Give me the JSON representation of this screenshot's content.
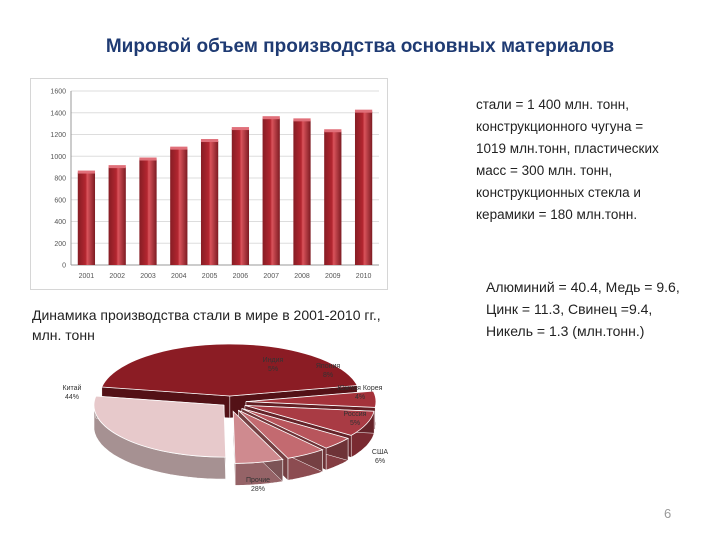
{
  "slide": {
    "title": "Мировой объем производства основных материалов",
    "caption": "Динамика производства стали в мире в 2001-2010 гг., млн. тонн",
    "text_block_1": "стали = 1 400 млн. тонн, конструкционного чугуна = 1019 млн.тонн, пластических масс = 300 млн. тонн, конструкционных стекла и керамики = 180 млн.тонн.",
    "text_block_2": "Алюминий = 40.4, Медь = 9.6, Цинк = 11.3, Свинец =9.4, Никель = 1.3 (млн.тонн.)",
    "page_number": "6"
  },
  "chart_data": [
    {
      "type": "bar",
      "categories": [
        "2001",
        "2002",
        "2003",
        "2004",
        "2005",
        "2006",
        "2007",
        "2008",
        "2009",
        "2010"
      ],
      "values": [
        850,
        900,
        970,
        1070,
        1140,
        1250,
        1350,
        1330,
        1230,
        1410
      ],
      "ylim": [
        0,
        1600
      ],
      "yticks": [
        0,
        200,
        400,
        600,
        800,
        1000,
        1200,
        1400,
        1600
      ],
      "grid": true,
      "color": "#b32630"
    },
    {
      "type": "pie",
      "style": "3d-exploded",
      "slices": [
        {
          "label": "Китай",
          "value": 44,
          "text": "44%",
          "color": "#8b1c24"
        },
        {
          "label": "Индия",
          "value": 5,
          "text": "5%",
          "color": "#a4323a"
        },
        {
          "label": "Япония",
          "value": 8,
          "text": "8%",
          "color": "#a93b44"
        },
        {
          "label": "Южная Корея",
          "value": 4,
          "text": "4%",
          "color": "#b8555c"
        },
        {
          "label": "Россия",
          "value": 5,
          "text": "5%",
          "color": "#c36a70"
        },
        {
          "label": "США",
          "value": 6,
          "text": "6%",
          "color": "#cf8a8f"
        },
        {
          "label": "Прочие",
          "value": 28,
          "text": "28%",
          "color": "#e7c9cb"
        }
      ]
    }
  ]
}
